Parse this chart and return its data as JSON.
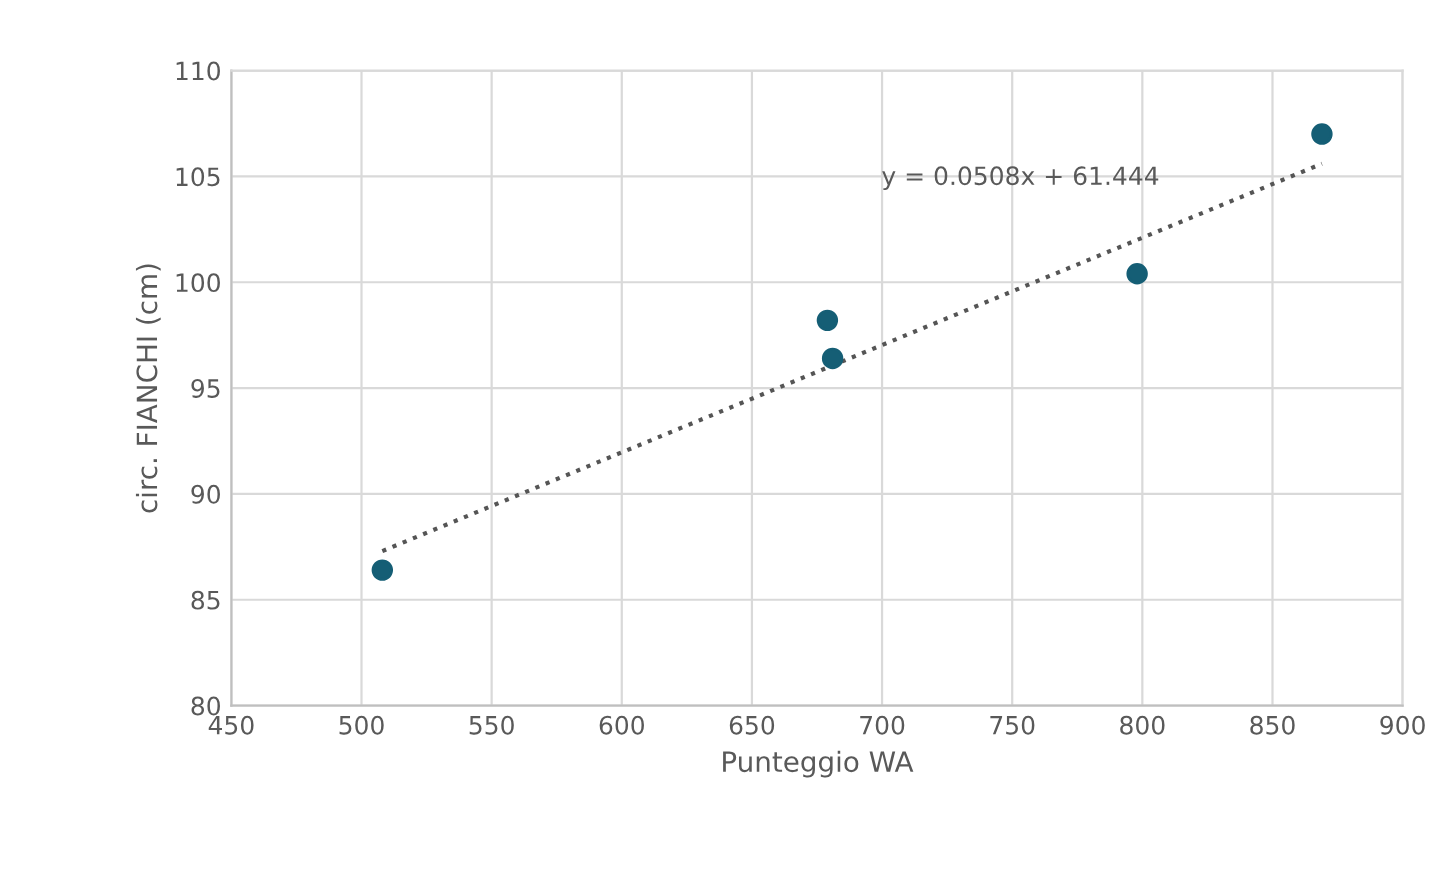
{
  "chart_data": {
    "type": "scatter",
    "xlabel": "Punteggio WA",
    "ylabel": "circ. FIANCHI (cm)",
    "xlim": [
      450,
      900
    ],
    "xticks": [
      450,
      500,
      550,
      600,
      650,
      700,
      750,
      800,
      850,
      900
    ],
    "ylim": [
      80,
      110
    ],
    "yticks": [
      80,
      85,
      90,
      95,
      100,
      105,
      110
    ],
    "grid": true,
    "legend": false,
    "marker": "circle",
    "series": [
      {
        "color": "#155e75",
        "x": [
          508,
          679,
          681,
          798,
          869
        ],
        "values": [
          86.4,
          98.2,
          96.4,
          100.4,
          107.0
        ]
      },
      {
        "type": "line",
        "color": "#555555",
        "line_style": "dotted",
        "marker": "none",
        "x": [
          508,
          869
        ],
        "values": [
          87.3,
          105.6
        ]
      }
    ],
    "annotations": [
      "y = 0.0508x + 61.444"
    ]
  }
}
